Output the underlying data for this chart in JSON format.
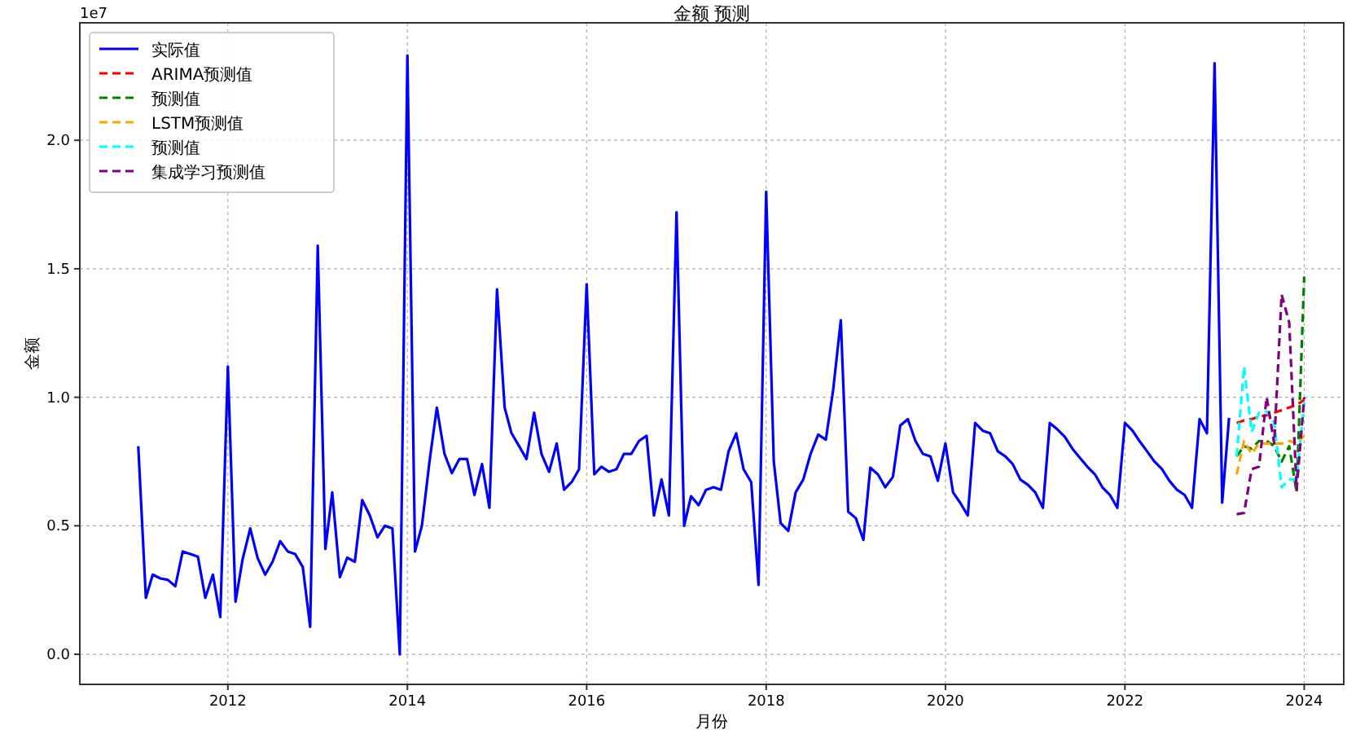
{
  "chart_data": {
    "type": "line",
    "title": "金额 预测",
    "xlabel": "月份",
    "ylabel": "金额",
    "annotations": [
      "1e7"
    ],
    "xlim": [
      "2010-05-08",
      "2024-06-10"
    ],
    "xticks": [
      {
        "value": "2012-01-01",
        "label": "2012"
      },
      {
        "value": "2014-01-01",
        "label": "2014"
      },
      {
        "value": "2016-01-01",
        "label": "2016"
      },
      {
        "value": "2018-01-01",
        "label": "2018"
      },
      {
        "value": "2020-01-01",
        "label": "2020"
      },
      {
        "value": "2022-01-01",
        "label": "2022"
      },
      {
        "value": "2024-01-01",
        "label": "2024"
      }
    ],
    "ylim": [
      -0.117,
      2.457
    ],
    "yticks": [
      {
        "value": 0,
        "label": "0.0"
      },
      0.5,
      {
        "value": 1,
        "label": "1.0"
      },
      1.5,
      {
        "value": 2,
        "label": "2.0"
      }
    ],
    "grid": true,
    "legend": "top left",
    "marker": "none",
    "series": [
      {
        "name": "实际值",
        "color": "#0000ff",
        "line_style": "solid",
        "x": [
          "2011-01",
          "2011-02",
          "2011-03",
          "2011-04",
          "2011-05",
          "2011-06",
          "2011-07",
          "2011-08",
          "2011-09",
          "2011-10",
          "2011-11",
          "2011-12",
          "2012-01",
          "2012-02",
          "2012-03",
          "2012-04",
          "2012-05",
          "2012-06",
          "2012-07",
          "2012-08",
          "2012-09",
          "2012-10",
          "2012-11",
          "2012-12",
          "2013-01",
          "2013-02",
          "2013-03",
          "2013-04",
          "2013-05",
          "2013-06",
          "2013-07",
          "2013-08",
          "2013-09",
          "2013-10",
          "2013-11",
          "2013-12",
          "2014-01",
          "2014-02",
          "2014-03",
          "2014-04",
          "2014-05",
          "2014-06",
          "2014-07",
          "2014-08",
          "2014-09",
          "2014-10",
          "2014-11",
          "2014-12",
          "2015-01",
          "2015-02",
          "2015-03",
          "2015-04",
          "2015-05",
          "2015-06",
          "2015-07",
          "2015-08",
          "2015-09",
          "2015-10",
          "2015-11",
          "2015-12",
          "2016-01",
          "2016-02",
          "2016-03",
          "2016-04",
          "2016-05",
          "2016-06",
          "2016-07",
          "2016-08",
          "2016-09",
          "2016-10",
          "2016-11",
          "2016-12",
          "2017-01",
          "2017-02",
          "2017-03",
          "2017-04",
          "2017-05",
          "2017-06",
          "2017-07",
          "2017-08",
          "2017-09",
          "2017-10",
          "2017-11",
          "2017-12",
          "2018-01",
          "2018-02",
          "2018-03",
          "2018-04",
          "2018-05",
          "2018-06",
          "2018-07",
          "2018-08",
          "2018-09",
          "2018-10",
          "2018-11",
          "2018-12",
          "2019-01",
          "2019-02",
          "2019-03",
          "2019-04",
          "2019-05",
          "2019-06",
          "2019-07",
          "2019-08",
          "2019-09",
          "2019-10",
          "2019-11",
          "2019-12",
          "2020-01",
          "2020-02",
          "2020-03",
          "2020-04",
          "2020-05",
          "2020-06",
          "2020-07",
          "2020-08",
          "2020-09",
          "2020-10",
          "2020-11",
          "2020-12",
          "2021-01",
          "2021-02",
          "2021-03",
          "2021-04",
          "2021-05",
          "2021-06",
          "2021-07",
          "2021-08",
          "2021-09",
          "2021-10",
          "2021-11",
          "2021-12",
          "2022-01",
          "2022-02",
          "2022-03",
          "2022-04",
          "2022-05",
          "2022-06",
          "2022-07",
          "2022-08",
          "2022-09",
          "2022-10",
          "2022-11",
          "2022-12",
          "2023-01",
          "2023-02",
          "2023-03"
        ],
        "values": [
          0.81,
          0.22,
          0.31,
          0.295,
          0.29,
          0.265,
          0.4,
          0.39,
          0.38,
          0.22,
          0.31,
          0.145,
          1.12,
          0.205,
          0.37,
          0.49,
          0.375,
          0.31,
          0.36,
          0.44,
          0.4,
          0.39,
          0.34,
          0.107,
          1.59,
          0.41,
          0.63,
          0.3,
          0.376,
          0.36,
          0.6,
          0.54,
          0.455,
          0.5,
          0.49,
          0,
          2.33,
          0.4,
          0.5,
          0.75,
          0.96,
          0.78,
          0.705,
          0.76,
          0.76,
          0.62,
          0.74,
          0.57,
          1.42,
          0.96,
          0.86,
          0.81,
          0.76,
          0.94,
          0.78,
          0.71,
          0.82,
          0.64,
          0.67,
          0.72,
          1.44,
          0.7,
          0.73,
          0.71,
          0.72,
          0.78,
          0.78,
          0.83,
          0.85,
          0.54,
          0.68,
          0.54,
          1.72,
          0.5,
          0.615,
          0.58,
          0.64,
          0.65,
          0.64,
          0.79,
          0.86,
          0.72,
          0.67,
          0.27,
          1.8,
          0.75,
          0.51,
          0.48,
          0.63,
          0.68,
          0.78,
          0.855,
          0.835,
          1.03,
          1.3,
          0.555,
          0.53,
          0.445,
          0.726,
          0.7,
          0.65,
          0.69,
          0.89,
          0.915,
          0.83,
          0.78,
          0.77,
          0.675,
          0.82,
          0.63,
          0.59,
          0.54,
          0.9,
          0.87,
          0.86,
          0.79,
          0.77,
          0.74,
          0.68,
          0.66,
          0.63,
          0.57,
          0.9,
          0.875,
          0.846,
          0.8,
          0.765,
          0.73,
          0.7,
          0.65,
          0.62,
          0.57,
          0.9,
          0.87,
          0.83,
          0.79,
          0.75,
          0.72,
          0.675,
          0.64,
          0.62,
          0.57,
          0.915,
          0.86,
          2.3,
          0.59,
          0.92
        ]
      },
      {
        "name": "ARIMA预测值",
        "color": "#ff0000",
        "line_style": "dashed",
        "x": [
          "2023-04",
          "2023-05",
          "2023-06",
          "2023-07",
          "2023-08",
          "2023-09",
          "2023-10",
          "2023-11",
          "2023-12",
          "2024-01"
        ],
        "values": [
          0.9,
          0.91,
          0.915,
          0.925,
          0.93,
          0.94,
          0.95,
          0.96,
          0.97,
          0.99
        ]
      },
      {
        "name": "预测值",
        "color": "#008000",
        "line_style": "dashed",
        "x": [
          "2023-04",
          "2023-05",
          "2023-06",
          "2023-07",
          "2023-08",
          "2023-09",
          "2023-10",
          "2023-11",
          "2023-12",
          "2024-01"
        ],
        "values": [
          0.77,
          0.81,
          0.8,
          0.83,
          0.83,
          0.81,
          0.75,
          0.81,
          0.63,
          1.47
        ]
      },
      {
        "name": "LSTM预测值",
        "color": "#ffa500",
        "line_style": "dashed",
        "x": [
          "2023-04",
          "2023-05",
          "2023-06",
          "2023-07",
          "2023-08",
          "2023-09",
          "2023-10",
          "2023-11",
          "2023-12",
          "2024-01"
        ],
        "values": [
          0.7,
          0.83,
          0.78,
          0.82,
          0.82,
          0.82,
          0.82,
          0.83,
          0.82,
          0.85
        ]
      },
      {
        "name": "预测值",
        "color": "#00ffff",
        "line_style": "dashed",
        "x": [
          "2023-04",
          "2023-05",
          "2023-06",
          "2023-07",
          "2023-08",
          "2023-09",
          "2023-10",
          "2023-11",
          "2023-12",
          "2024-01"
        ],
        "values": [
          0.77,
          1.12,
          0.865,
          0.94,
          0.945,
          0.9,
          0.65,
          0.68,
          0.68,
          0.98
        ]
      },
      {
        "name": "集成学习预测值",
        "color": "#800080",
        "line_style": "dashed",
        "x": [
          "2023-04",
          "2023-05",
          "2023-06",
          "2023-07",
          "2023-08",
          "2023-09",
          "2023-10",
          "2023-11",
          "2023-12",
          "2024-01"
        ],
        "values": [
          0.545,
          0.55,
          0.72,
          0.73,
          1,
          0.82,
          1.4,
          1.29,
          0.64,
          1
        ]
      }
    ]
  }
}
